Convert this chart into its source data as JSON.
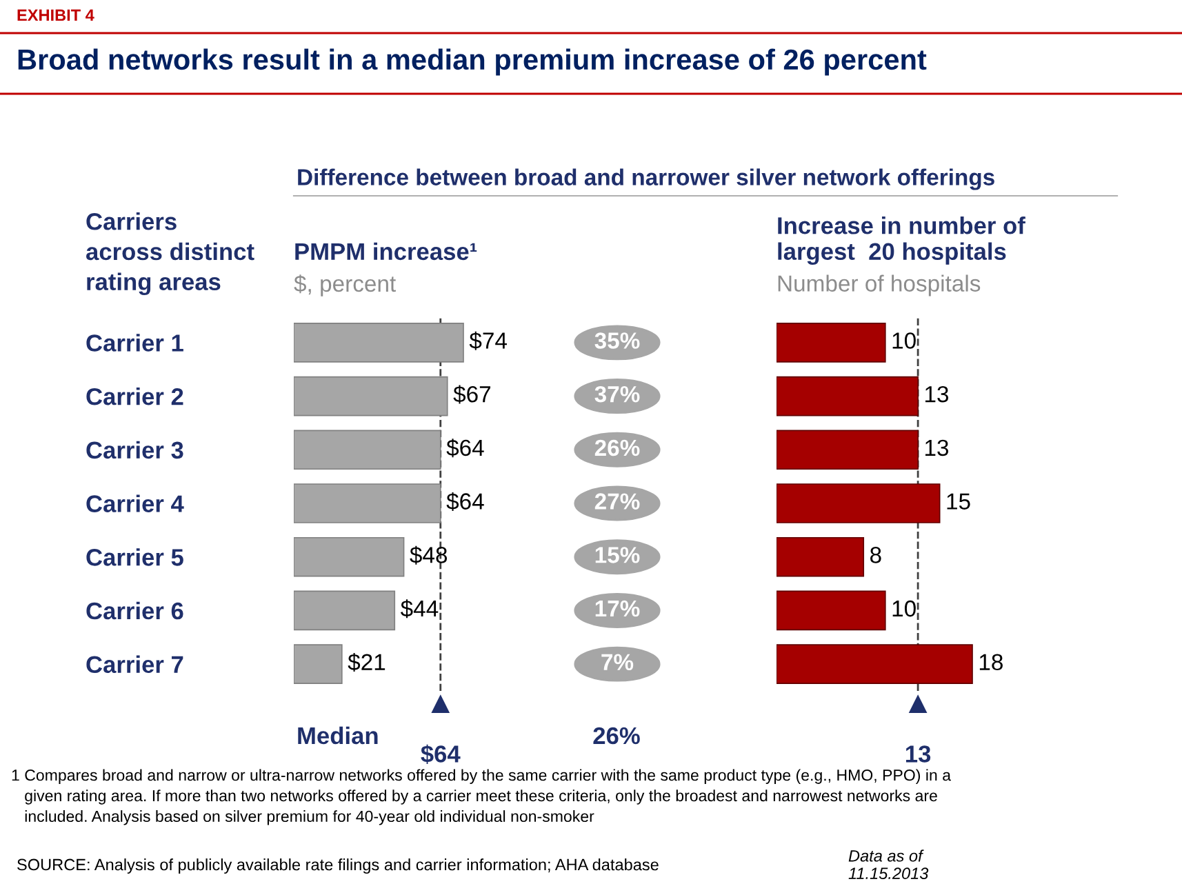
{
  "chart_data": [
    {
      "type": "bar",
      "orientation": "horizontal",
      "title": "PMPM increase¹",
      "subtitle": "$, percent",
      "ylabel": "Carriers\nacross distinct\nrating areas",
      "categories": [
        "Carrier 1",
        "Carrier 2",
        "Carrier 3",
        "Carrier 4",
        "Carrier 5",
        "Carrier 6",
        "Carrier 7"
      ],
      "series": [
        {
          "color": "#a6a6a6",
          "values": [
            74,
            67,
            64,
            64,
            48,
            44,
            21
          ],
          "value_labels": [
            "$74",
            "$67",
            "$64",
            "$64",
            "$48",
            "$44",
            "$21"
          ]
        }
      ],
      "tick_labels": "y",
      "ref_lines": [
        {
          "axis": "x",
          "value": 64,
          "label": "$64",
          "line_style": "dashed",
          "color": "#404040"
        }
      ],
      "annotations": [
        "EXHIBIT 4",
        "Broad networks result in a median premium increase of 26 percent",
        "Difference between broad and narrower silver network offerings",
        "Median",
        "1 Compares broad and narrow or ultra-narrow networks offered by the same carrier with the same product type (e.g., HMO, PPO) in a\n   given rating area. If more than two networks offered by a carrier meet these criteria, only the broadest and narrowest networks are\n   included. Analysis based on silver premium for 40-year old individual non-smoker",
        "SOURCE: Analysis of publicly available rate filings and carrier information; AHA database",
        "Data as of\n11.15.2013"
      ]
    },
    {
      "type": "other",
      "value_labels": [
        "35%",
        "37%",
        "26%",
        "27%",
        "15%",
        "17%",
        "7%"
      ],
      "colors": [
        "#a6a6a6"
      ],
      "annotations": [
        "26%"
      ]
    },
    {
      "type": "bar",
      "orientation": "horizontal",
      "title": "Increase in number of\nlargest  20 hospitals",
      "subtitle": "Number of hospitals",
      "categories": [
        null,
        null,
        null,
        null,
        null,
        null,
        null
      ],
      "series": [
        {
          "color": "#a50000",
          "values": [
            10,
            13,
            13,
            15,
            8,
            10,
            18
          ]
        }
      ],
      "data_labels": true,
      "ref_lines": [
        {
          "axis": "x",
          "value": 13,
          "label": "13",
          "line_style": "dashed",
          "color": "#404040"
        }
      ]
    }
  ]
}
